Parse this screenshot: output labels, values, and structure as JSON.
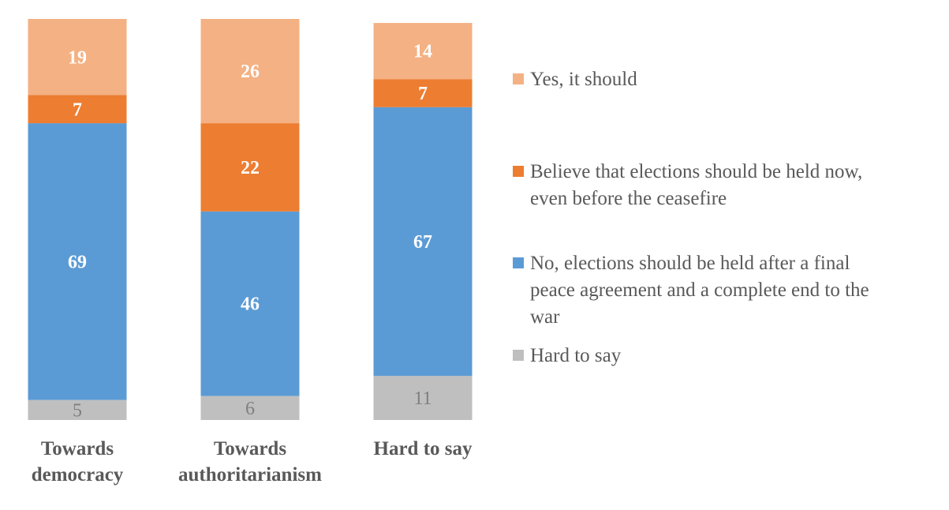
{
  "chart_data": {
    "type": "bar",
    "stacked": true,
    "categories": [
      [
        "Towards",
        "democracy"
      ],
      [
        "Towards",
        "authoritarianism"
      ],
      [
        "Hard to say"
      ]
    ],
    "series": [
      {
        "name": "Hard to say",
        "color": "#bfbfbf",
        "label_color": "#7f7f7f",
        "values": [
          5,
          6,
          11
        ]
      },
      {
        "name": "No, elections should be held after a final peace agreement and a complete end to the war",
        "color": "#5b9bd5",
        "label_color": "#ffffff",
        "values": [
          69,
          46,
          67
        ]
      },
      {
        "name": "Believe that elections should be held now, even before the ceasefire",
        "color": "#ed7d31",
        "label_color": "#ffffff",
        "values": [
          7,
          22,
          7
        ]
      },
      {
        "name": "Yes, it should",
        "color": "#f4b183",
        "label_color": "#ffffff",
        "values": [
          19,
          26,
          14
        ]
      }
    ],
    "legend": {
      "position": "right",
      "entries": [
        {
          "lines": [
            "Yes, it should"
          ],
          "color": "#f4b183"
        },
        {
          "lines": [
            "Believe that elections should be held now,",
            "even before the ceasefire"
          ],
          "color": "#ed7d31"
        },
        {
          "lines": [
            "No, elections should be held after a final",
            "peace agreement and a complete end to the",
            "war"
          ],
          "color": "#5b9bd5"
        },
        {
          "lines": [
            "Hard to say"
          ],
          "color": "#bfbfbf"
        }
      ]
    },
    "ylim": [
      0,
      100
    ],
    "grid": false
  }
}
